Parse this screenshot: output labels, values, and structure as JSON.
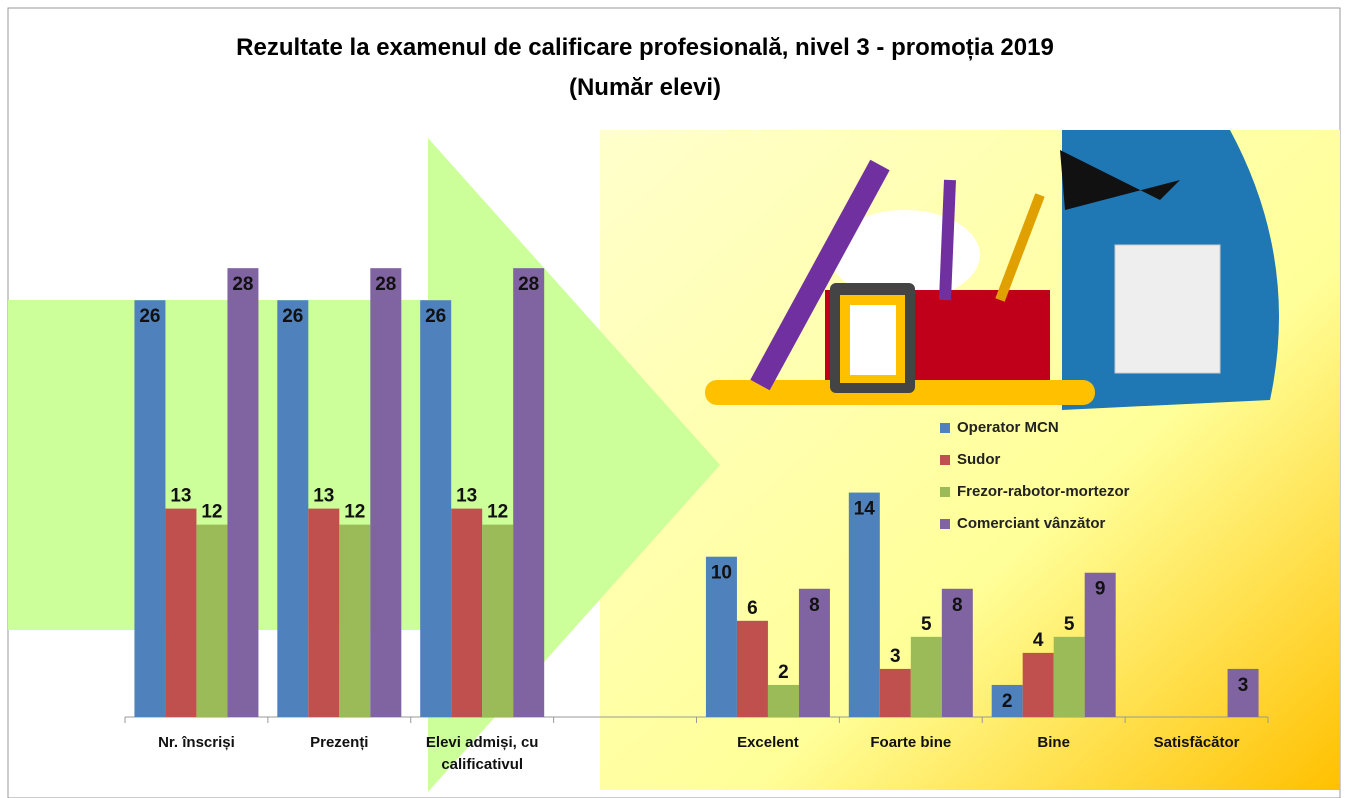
{
  "chart_data": {
    "type": "bar",
    "title": "Rezultate la examenul de calificare profesională, nivel 3 - promoția 2019",
    "subtitle": "(Număr elevi)",
    "categories": [
      "Nr. înscriși",
      "Prezenți",
      "Elevi admiși, cu calificativul",
      null,
      "Excelent",
      "Foarte bine",
      "Bine",
      "Satisfăcător"
    ],
    "series": [
      {
        "name": "Operator MCN",
        "color": "#4f81bd",
        "values": [
          26,
          26,
          26,
          null,
          10,
          14,
          2,
          null
        ]
      },
      {
        "name": "Sudor",
        "color": "#c0504d",
        "values": [
          13,
          13,
          13,
          null,
          6,
          3,
          4,
          null
        ]
      },
      {
        "name": "Frezor-rabotor-mortezor",
        "color": "#9bbb59",
        "values": [
          12,
          12,
          12,
          null,
          2,
          5,
          5,
          null
        ]
      },
      {
        "name": "Comerciant vânzător",
        "color": "#8064a2",
        "values": [
          28,
          28,
          28,
          null,
          8,
          8,
          9,
          3
        ]
      }
    ],
    "legend": "right"
  }
}
